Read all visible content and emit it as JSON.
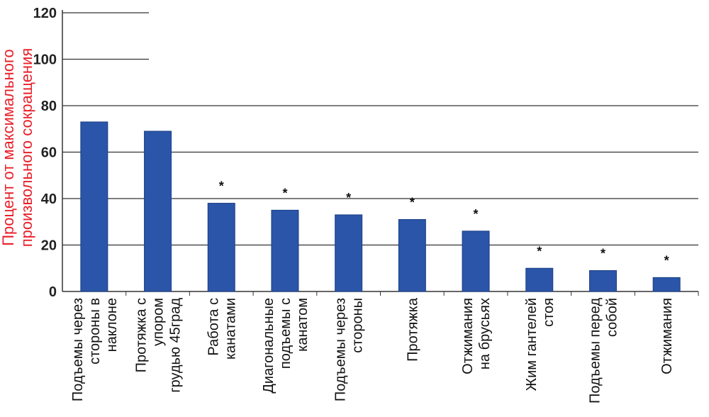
{
  "chart_data": {
    "type": "bar",
    "ylabel": "Процент от максимального произвольного сокращения",
    "ylim": [
      0,
      120
    ],
    "yticks": [
      "0",
      "20",
      "40",
      "60",
      "80",
      "100",
      "120"
    ],
    "grid": true,
    "categories": [
      [
        "Подъемы через",
        "стороны в",
        "наклоне"
      ],
      [
        "Протяжка с",
        "упором",
        "грудью 45град"
      ],
      [
        "Работа с",
        "канатами"
      ],
      [
        "Диагональные",
        "подъемы с",
        "канатом"
      ],
      [
        "Подъемы через",
        "стороны"
      ],
      [
        "Протяжка"
      ],
      [
        "Отжимания",
        "на брусьях"
      ],
      [
        "Жим гантелей",
        "стоя"
      ],
      [
        "Подъемы перед",
        "собой"
      ],
      [
        "Отжимания"
      ]
    ],
    "values": [
      73,
      69,
      38,
      35,
      33,
      31,
      26,
      10,
      9,
      6
    ],
    "significance": [
      "",
      "",
      "*",
      "*",
      "*",
      "*",
      "*",
      "*",
      "*",
      "*"
    ],
    "colors": {
      "bar": "#2a55a8",
      "grid": "#333333",
      "ylabel": "#e8202a"
    }
  }
}
